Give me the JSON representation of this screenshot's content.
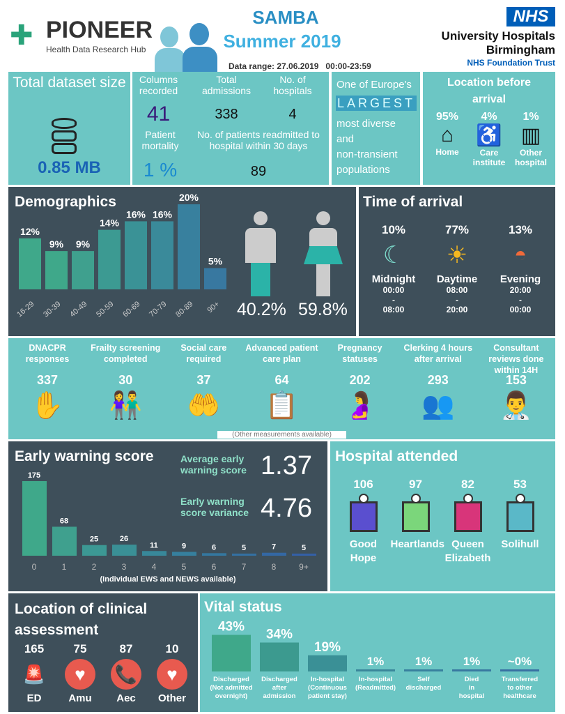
{
  "header": {
    "logo_name": "PIONEER",
    "logo_sub": "Health Data Research Hub",
    "title": "SAMBA",
    "subtitle": "Summer 2019",
    "data_range": "Data range: 27.06.2019   00:00-23:59",
    "nhs_badge": "NHS",
    "trust_line1": "University Hospitals",
    "trust_line2": "Birmingham",
    "trust_line3": "NHS Foundation Trust"
  },
  "dataset": {
    "label": "Total dataset size",
    "value": "0.85 MB"
  },
  "stats": {
    "columns_label": "Columns recorded",
    "columns": "41",
    "admissions_label": "Total admissions",
    "admissions": "338",
    "hospitals_label": "No. of hospitals",
    "hospitals": "4",
    "mortality_label": "Patient mortality",
    "mortality": "1 %",
    "readmit_label": "No. of patients readmitted to hospital within 30 days",
    "readmit": "89"
  },
  "europe": {
    "line1": "One of Europe's",
    "highlight": "LARGEST",
    "line2": "most diverse",
    "line3": "and",
    "line4": "non-transient",
    "line5": "populations"
  },
  "location_before": {
    "title": "Location before arrival",
    "items": [
      {
        "pct": "95%",
        "label": "Home"
      },
      {
        "pct": "4%",
        "label": "Care institute"
      },
      {
        "pct": "1%",
        "label": "Other hospital"
      }
    ]
  },
  "demographics": {
    "title": "Demographics",
    "male_pct": "40.2%",
    "female_pct": "59.8%"
  },
  "time_of_arrival": {
    "title": "Time of arrival",
    "items": [
      {
        "pct": "10%",
        "label": "Midnight",
        "from": "00:00",
        "sep": "-",
        "to": "08:00"
      },
      {
        "pct": "77%",
        "label": "Daytime",
        "from": "08:00",
        "sep": "-",
        "to": "20:00"
      },
      {
        "pct": "13%",
        "label": "Evening",
        "from": "20:00",
        "sep": "-",
        "to": "00:00"
      }
    ]
  },
  "measures": {
    "items": [
      {
        "label": "DNACPR responses",
        "value": "337"
      },
      {
        "label": "Frailty screening completed",
        "value": "30"
      },
      {
        "label": "Social care required",
        "value": "37"
      },
      {
        "label": "Advanced patient care plan",
        "value": "64"
      },
      {
        "label": "Pregnancy statuses",
        "value": "202"
      },
      {
        "label": "Clerking 4 hours after arrival",
        "value": "293"
      },
      {
        "label": "Consultant reviews done within 14H",
        "value": "153"
      }
    ],
    "note": "(Other measurements available)"
  },
  "ews": {
    "title": "Early warning score",
    "avg_label": "Average early warning score",
    "avg": "1.37",
    "var_label": "Early warning score variance",
    "var": "4.76",
    "note": "(Individual EWS and NEWS available)"
  },
  "hospital": {
    "title": "Hospital attended",
    "items": [
      {
        "value": "106",
        "name": "Good Hope",
        "color": "#5a4fcf"
      },
      {
        "value": "97",
        "name": "Heartlands",
        "color": "#7bd67b"
      },
      {
        "value": "82",
        "name": "Queen Elizabeth",
        "color": "#d8357a"
      },
      {
        "value": "53",
        "name": "Solihull",
        "color": "#5ab8c8"
      }
    ]
  },
  "clinical": {
    "title": "Location of clinical assessment",
    "items": [
      {
        "value": "165",
        "label": "ED"
      },
      {
        "value": "75",
        "label": "Amu"
      },
      {
        "value": "87",
        "label": "Aec"
      },
      {
        "value": "10",
        "label": "Other"
      }
    ]
  },
  "vital": {
    "title": "Vital status"
  },
  "chart_data": [
    {
      "type": "bar",
      "title": "Demographics",
      "categories": [
        "16-29",
        "30-39",
        "40-49",
        "50-59",
        "60-69",
        "70-79",
        "80-89",
        "90+"
      ],
      "values": [
        12,
        9,
        9,
        14,
        16,
        16,
        20,
        5
      ],
      "labels": [
        "12%",
        "9%",
        "9%",
        "14%",
        "16%",
        "16%",
        "20%",
        "5%"
      ],
      "colors": [
        "#3fa88a",
        "#3fa88a",
        "#3fa08e",
        "#3c9a92",
        "#3a9296",
        "#3a8a9a",
        "#38809e",
        "#3878a0"
      ]
    },
    {
      "type": "bar",
      "title": "Early warning score",
      "categories": [
        "0",
        "1",
        "2",
        "3",
        "4",
        "5",
        "6",
        "7",
        "8",
        "9+"
      ],
      "values": [
        175,
        68,
        25,
        26,
        11,
        9,
        6,
        5,
        7,
        5
      ],
      "colors": [
        "#3fa88a",
        "#3fa08e",
        "#3c9894",
        "#3a9096",
        "#38889a",
        "#36809e",
        "#3478a0",
        "#3470a2",
        "#3468a4",
        "#3460a6"
      ]
    },
    {
      "type": "bar",
      "title": "Vital status",
      "categories": [
        "Discharged (Not admitted overnight)",
        "Discharged after admission",
        "In-hospital (Continuous patient stay)",
        "In-hospital (Readmitted)",
        "Self discharged",
        "Died in hospital",
        "Transferred to other healthcare"
      ],
      "values": [
        43,
        34,
        19,
        1,
        1,
        1,
        0
      ],
      "labels": [
        "43%",
        "34%",
        "19%",
        "1%",
        "1%",
        "1%",
        "~0%"
      ],
      "colors": [
        "#3fa88a",
        "#3c9a8f",
        "#3a9096",
        "#3a869a",
        "#38809e",
        "#3878a0",
        "#3870a2"
      ]
    }
  ]
}
